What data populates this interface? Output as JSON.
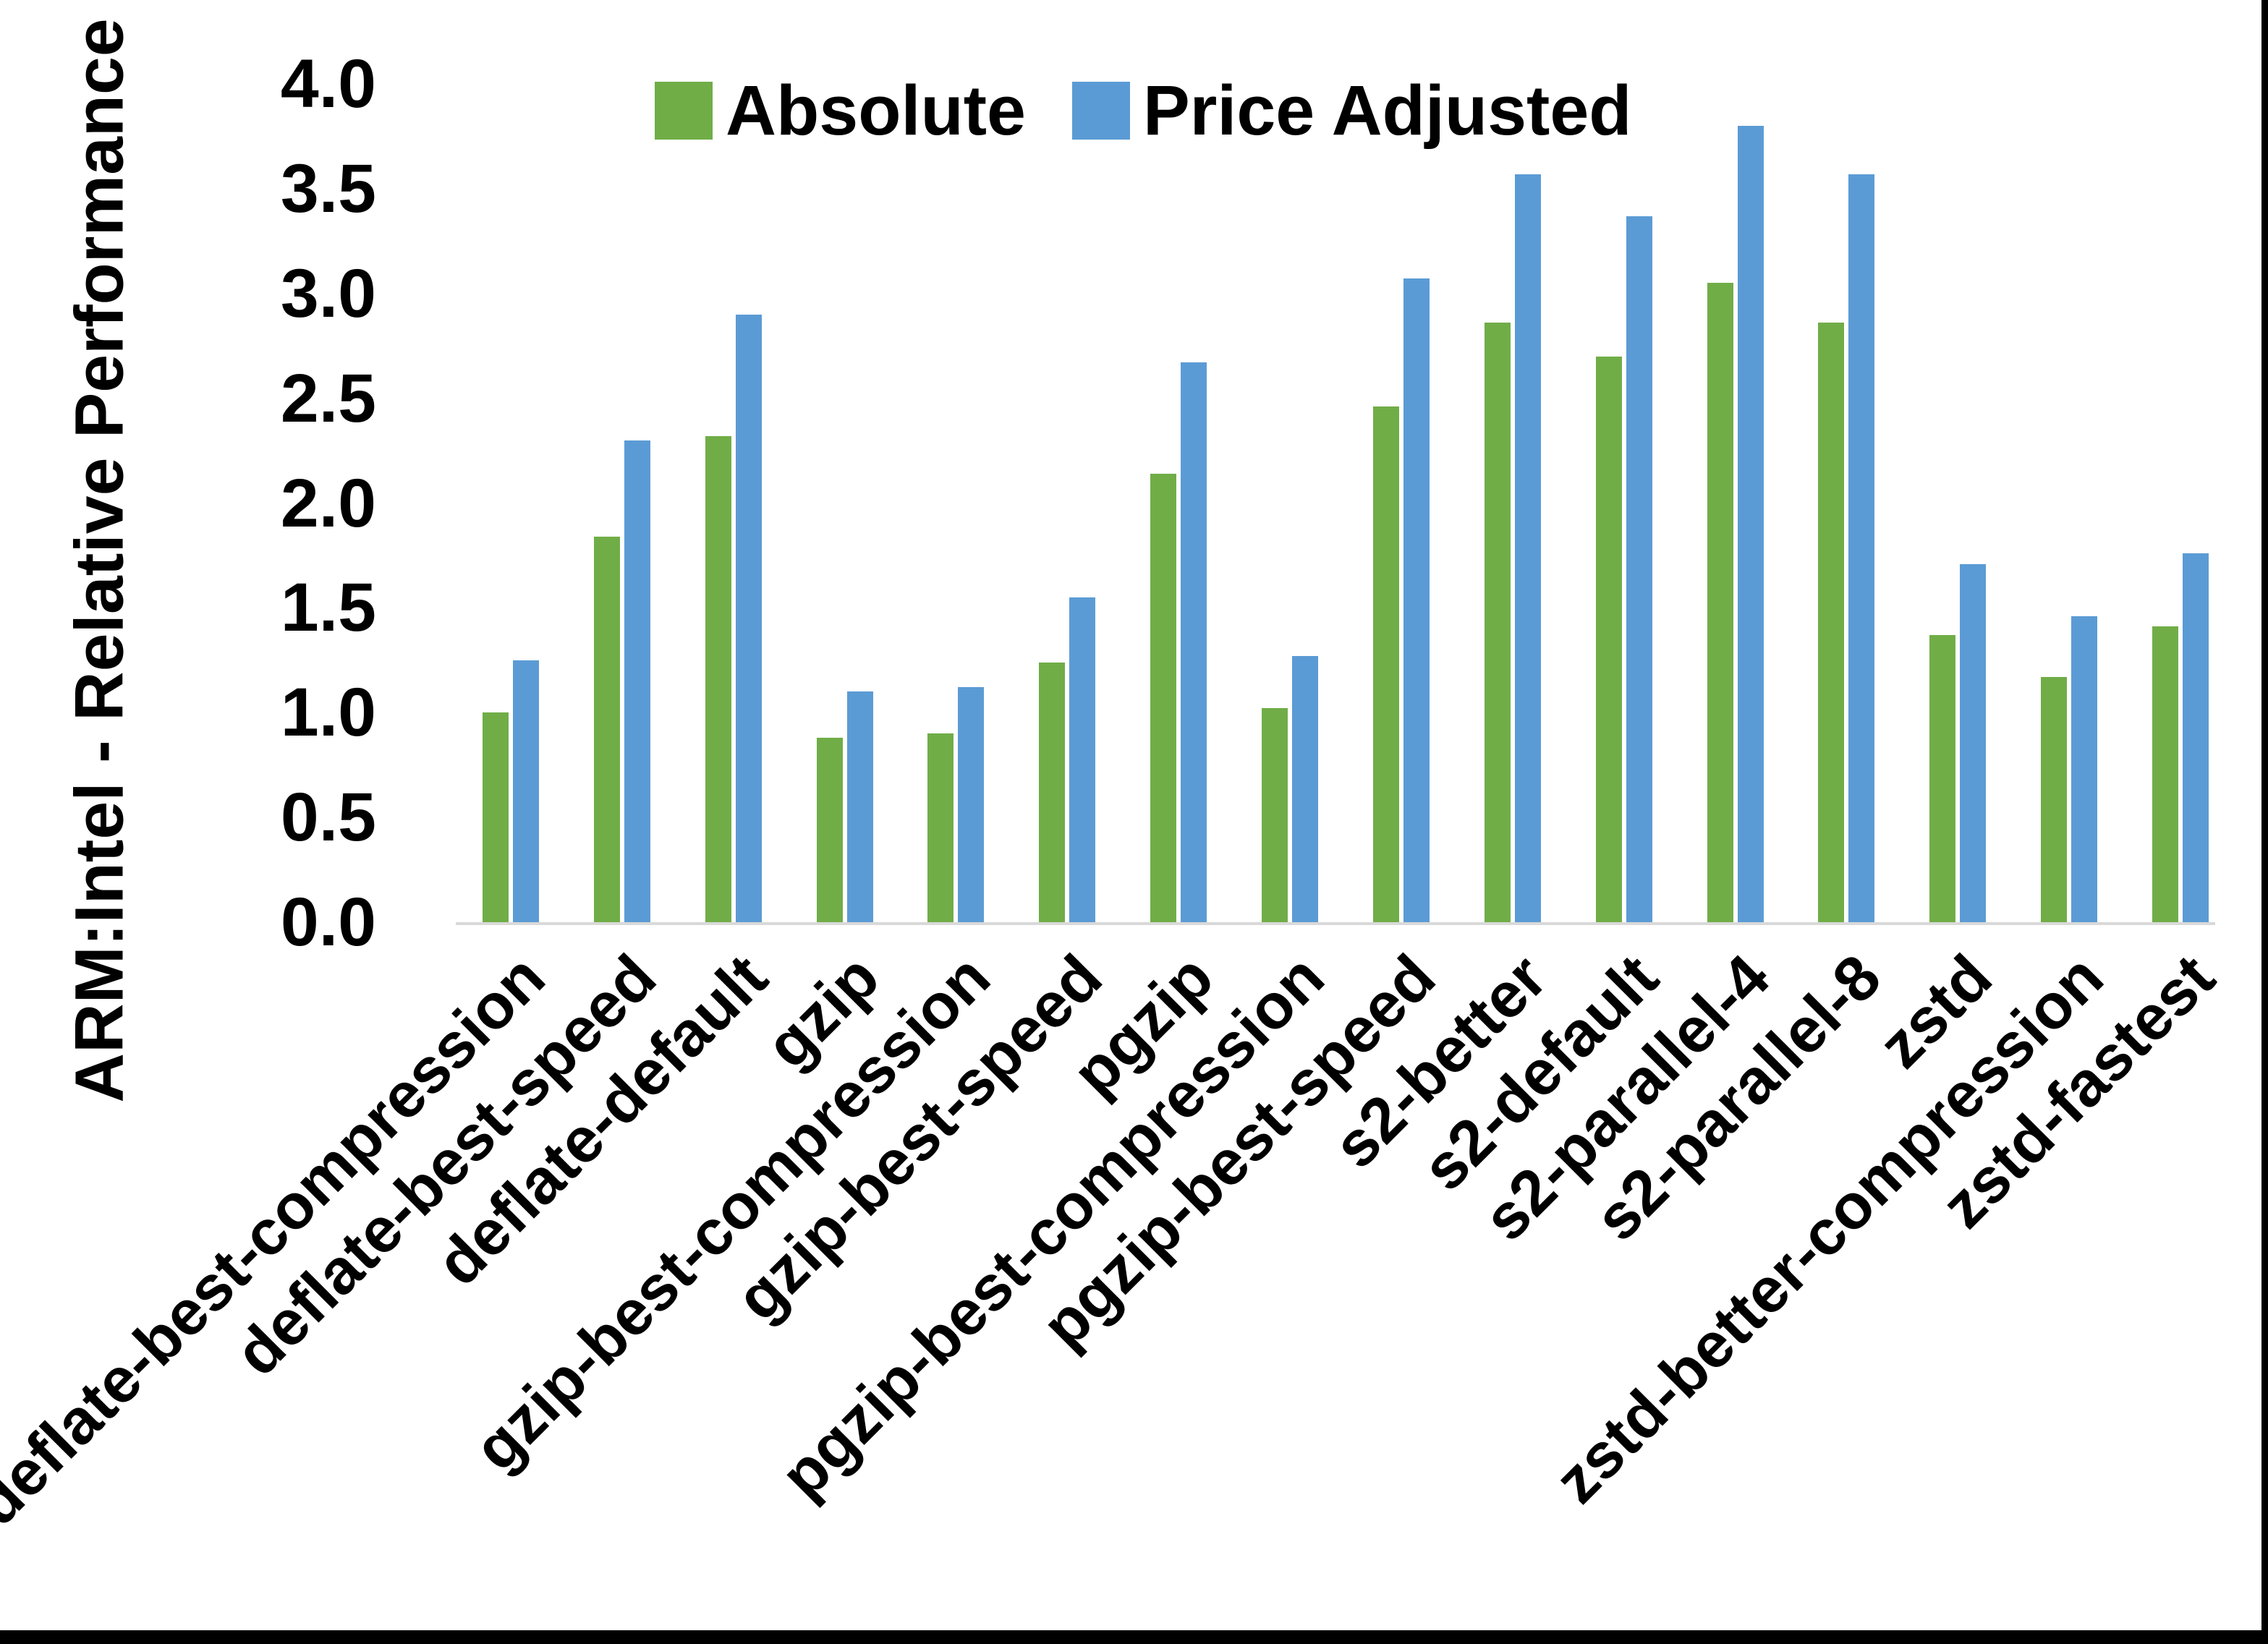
{
  "chart_data": {
    "type": "bar",
    "title": "",
    "xlabel": "",
    "ylabel": "ARM:Intel - Relative Performance",
    "ylim": [
      0.0,
      4.0
    ],
    "ytick_step": 0.5,
    "ytick_labels": [
      "0.0",
      "0.5",
      "1.0",
      "1.5",
      "2.0",
      "2.5",
      "3.0",
      "3.5",
      "4.0"
    ],
    "grid": false,
    "legend_position": "top-center",
    "categories": [
      "deflate-best-compression",
      "deflate-best-speed",
      "deflate-default",
      "gzip",
      "gzip-best-compression",
      "gzip-best-speed",
      "pgzip",
      "pgzip-best-compression",
      "pgzip-best-speed",
      "s2-better",
      "s2-default",
      "s2-parallel-4",
      "s2-parallel-8",
      "zstd",
      "zstd-better-compression",
      "zstd-fastest"
    ],
    "series": [
      {
        "name": "Absolute",
        "color": "#70AD47",
        "values": [
          1.0,
          1.84,
          2.32,
          0.88,
          0.9,
          1.24,
          2.14,
          1.02,
          2.46,
          2.86,
          2.7,
          3.05,
          2.86,
          1.37,
          1.17,
          1.41
        ]
      },
      {
        "name": "Price Adjusted",
        "color": "#5B9BD5",
        "values": [
          1.25,
          2.3,
          2.9,
          1.1,
          1.12,
          1.55,
          2.67,
          1.27,
          3.07,
          3.57,
          3.37,
          3.8,
          3.57,
          1.71,
          1.46,
          1.76
        ]
      }
    ]
  },
  "colors": {
    "background": "#FFFFFF",
    "axis_line": "#D9D9D9",
    "text": "#000000",
    "frame_edges": "#000000"
  }
}
